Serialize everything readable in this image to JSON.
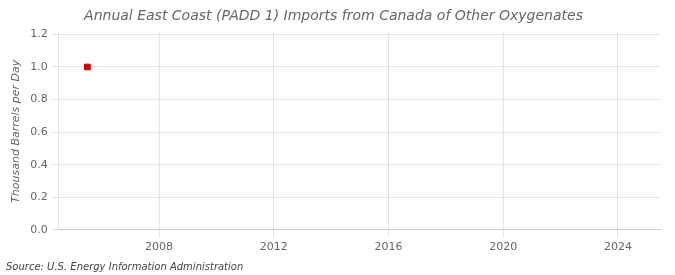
{
  "chart_data": {
    "type": "scatter",
    "title": "Annual East Coast (PADD 1) Imports from Canada of Other Oxygenates",
    "ylabel": "Thousand Barrels per Day",
    "annotations": [
      "Source: U.S. Energy Information Administration"
    ],
    "x": [
      2005.5
    ],
    "values": [
      1.0
    ],
    "color": "#cc0000",
    "marker": "square",
    "xlim": [
      2004.5,
      2025.5
    ],
    "ylim": [
      0.0,
      1.21
    ],
    "xticks": [
      2008,
      2012,
      2016,
      2020,
      2024
    ],
    "yticks": [
      {
        "value": 0.0,
        "label": "0.0"
      },
      0.2,
      0.4,
      0.6,
      0.8,
      {
        "value": 1.0,
        "label": "1.0"
      },
      1.2
    ],
    "grid": true
  }
}
